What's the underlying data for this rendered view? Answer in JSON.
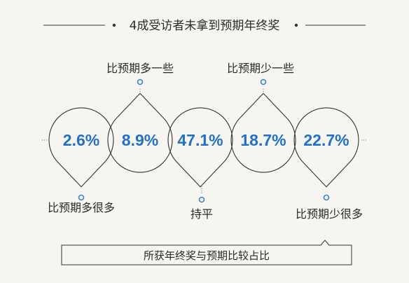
{
  "title": "4成受访者未拿到预期年终奖",
  "chart_data": {
    "type": "pie",
    "title": "4成受访者未拿到预期年终奖",
    "categories": [
      "比预期多很多",
      "比预期多一些",
      "持平",
      "比预期少一些",
      "比预期少很多"
    ],
    "values": [
      2.6,
      8.9,
      47.1,
      18.7,
      22.7
    ],
    "value_labels": [
      "2.6%",
      "8.9%",
      "47.1%",
      "18.7%",
      "22.7%"
    ],
    "unit": "%",
    "caption": "所获年终奖与预期比较占比"
  },
  "colors": {
    "background": "#f7f5ef",
    "value_text": "#2370c4",
    "marker": "#3a86d4",
    "outline": "#333333"
  }
}
